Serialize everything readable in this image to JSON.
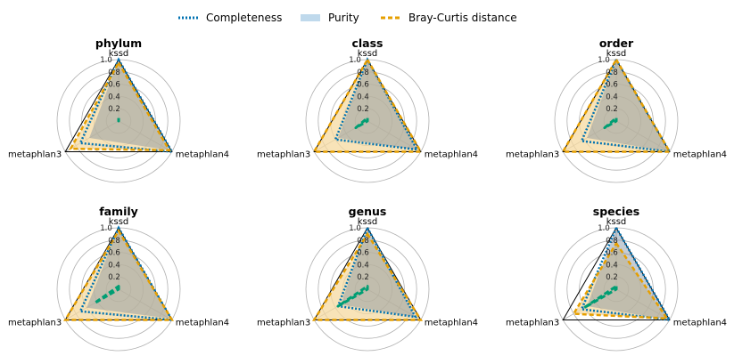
{
  "legend": {
    "placement": "top-center",
    "items": [
      {
        "label": "Completeness",
        "color": "#0072B2",
        "style": "dotted"
      },
      {
        "label": "Purity",
        "color": "#BFD9EC",
        "style": "patch"
      },
      {
        "label": "Bray-Curtis distance",
        "color": "#E69F00",
        "style": "dashed"
      }
    ]
  },
  "axes_labels": [
    "kssd",
    "metaphlan4",
    "metaphlan3"
  ],
  "radial_ticks": [
    "0.2",
    "0.4",
    "0.6",
    "0.8",
    "1.0"
  ],
  "colors": {
    "completeness": "#0072B2",
    "purity_fill": "#7F8FA0",
    "bray_curtis": "#E69F00",
    "bray_fill": "#F5D9A0",
    "fourth": "#009E73",
    "gridline": "#B0B0B0",
    "frame": "#000000"
  },
  "chart_data": [
    {
      "type": "radar",
      "title": "phylum",
      "axes": [
        "kssd",
        "metaphlan4",
        "metaphlan3"
      ],
      "rlim": [
        0,
        1
      ],
      "series": [
        {
          "name": "Completeness",
          "values": [
            1.0,
            1.0,
            0.72
          ]
        },
        {
          "name": "Purity",
          "values": [
            1.0,
            0.95,
            0.55
          ]
        },
        {
          "name": "Bray-Curtis distance",
          "values": [
            0.95,
            0.95,
            0.9
          ]
        },
        {
          "values": [
            0.05,
            0.0,
            0.0
          ]
        }
      ]
    },
    {
      "type": "radar",
      "title": "class",
      "axes": [
        "kssd",
        "metaphlan4",
        "metaphlan3"
      ],
      "rlim": [
        0,
        1
      ],
      "series": [
        {
          "name": "Completeness",
          "values": [
            1.0,
            0.93,
            0.6
          ]
        },
        {
          "name": "Purity",
          "values": [
            1.0,
            0.95,
            0.55
          ]
        },
        {
          "name": "Bray-Curtis distance",
          "values": [
            1.0,
            1.0,
            1.0
          ]
        },
        {
          "values": [
            0.05,
            0.0,
            0.22
          ]
        }
      ]
    },
    {
      "type": "radar",
      "title": "order",
      "axes": [
        "kssd",
        "metaphlan4",
        "metaphlan3"
      ],
      "rlim": [
        0,
        1
      ],
      "series": [
        {
          "name": "Completeness",
          "values": [
            1.0,
            1.0,
            0.65
          ]
        },
        {
          "name": "Purity",
          "values": [
            1.0,
            1.0,
            0.55
          ]
        },
        {
          "name": "Bray-Curtis distance",
          "values": [
            1.0,
            1.0,
            1.0
          ]
        },
        {
          "values": [
            0.05,
            0.0,
            0.22
          ]
        }
      ]
    },
    {
      "type": "radar",
      "title": "family",
      "axes": [
        "kssd",
        "metaphlan4",
        "metaphlan3"
      ],
      "rlim": [
        0,
        1
      ],
      "series": [
        {
          "name": "Completeness",
          "values": [
            1.0,
            1.0,
            0.72
          ]
        },
        {
          "name": "Purity",
          "values": [
            1.0,
            0.95,
            0.6
          ]
        },
        {
          "name": "Bray-Curtis distance",
          "values": [
            0.95,
            1.0,
            1.0
          ]
        },
        {
          "values": [
            0.05,
            0.0,
            0.45
          ]
        }
      ]
    },
    {
      "type": "radar",
      "title": "genus",
      "axes": [
        "kssd",
        "metaphlan4",
        "metaphlan3"
      ],
      "rlim": [
        0,
        1
      ],
      "series": [
        {
          "name": "Completeness",
          "values": [
            1.0,
            0.9,
            0.55
          ]
        },
        {
          "name": "Purity",
          "values": [
            1.0,
            0.9,
            0.5
          ]
        },
        {
          "name": "Bray-Curtis distance",
          "values": [
            0.9,
            1.0,
            1.0
          ]
        },
        {
          "values": [
            0.05,
            0.0,
            0.55
          ]
        }
      ]
    },
    {
      "type": "radar",
      "title": "species",
      "axes": [
        "kssd",
        "metaphlan4",
        "metaphlan3"
      ],
      "rlim": [
        0,
        1
      ],
      "series": [
        {
          "name": "Completeness",
          "values": [
            1.0,
            1.0,
            0.65
          ]
        },
        {
          "name": "Purity",
          "values": [
            1.0,
            1.0,
            0.55
          ]
        },
        {
          "name": "Bray-Curtis distance",
          "values": [
            0.75,
            0.95,
            0.8
          ]
        },
        {
          "values": [
            0.05,
            0.0,
            0.6
          ]
        }
      ]
    }
  ]
}
